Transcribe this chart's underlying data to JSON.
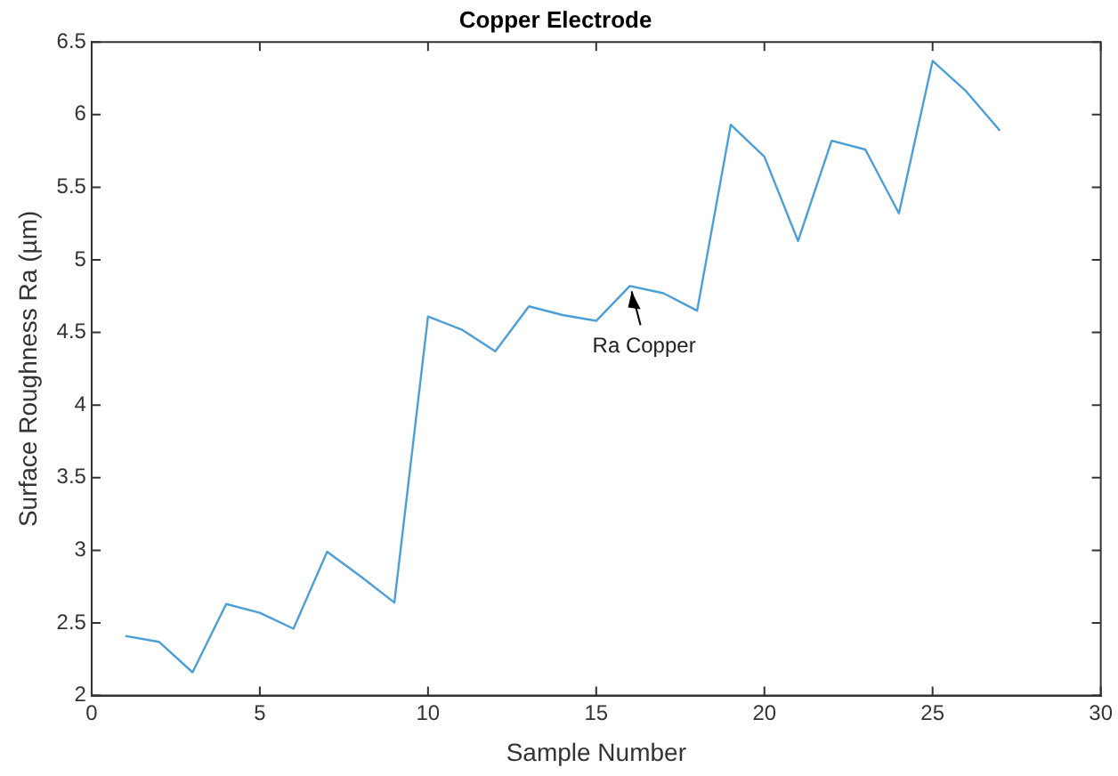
{
  "chart_data": {
    "type": "line",
    "title": "Copper Electrode",
    "xlabel": "Sample Number",
    "ylabel": "Surface Roughness Ra (µm)",
    "x": [
      1,
      2,
      3,
      4,
      5,
      6,
      7,
      8,
      9,
      10,
      11,
      12,
      13,
      14,
      15,
      16,
      17,
      18,
      19,
      20,
      21,
      22,
      23,
      24,
      25,
      26,
      27
    ],
    "series": [
      {
        "color": "#4a9fd8",
        "values": [
          2.41,
          2.37,
          2.16,
          2.63,
          2.57,
          2.46,
          2.99,
          2.82,
          2.64,
          4.61,
          4.52,
          4.37,
          4.68,
          4.62,
          4.58,
          4.82,
          4.77,
          4.65,
          5.93,
          5.71,
          5.13,
          5.82,
          5.76,
          5.32,
          6.37,
          6.16,
          5.89
        ]
      }
    ],
    "xlim": [
      0,
      30
    ],
    "xticks": [
      0,
      5,
      10,
      15,
      20,
      25,
      30
    ],
    "ylim": [
      2,
      6.5
    ],
    "yticks": [
      2,
      2.5,
      3,
      3.5,
      4,
      4.5,
      5,
      5.5,
      6,
      6.5
    ],
    "grid": false,
    "legend": false,
    "marker": "none",
    "line_style": "solid",
    "annotations": [
      {
        "text": "Ra Copper",
        "x": 16,
        "y": 4.82
      }
    ]
  }
}
